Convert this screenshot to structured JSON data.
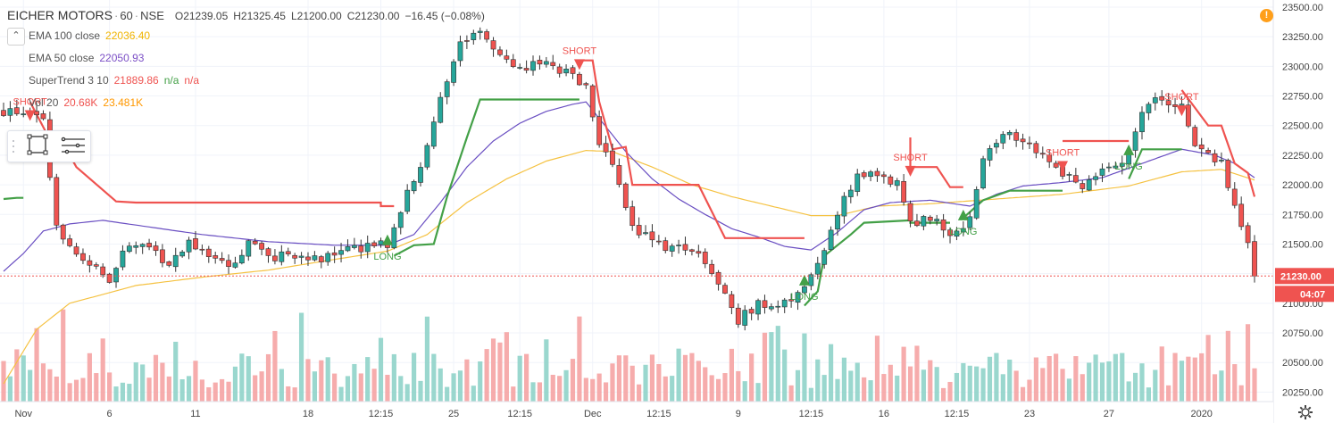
{
  "header": {
    "symbol": "EICHER MOTORS",
    "interval": "60",
    "exchange": "NSE",
    "open": "O21239.05",
    "high": "H21325.45",
    "low": "L21200.00",
    "close": "C21230.00",
    "change": "−16.45 (−0.08%)"
  },
  "indicators": [
    {
      "name": "EMA 100 close",
      "values": [
        "22036.40"
      ],
      "colors": [
        "#f0b400"
      ]
    },
    {
      "name": "EMA 50 close",
      "values": [
        "22050.93"
      ],
      "colors": [
        "#7b4fc6"
      ]
    },
    {
      "name": "SuperTrend 3 10",
      "values": [
        "21889.86",
        "n/a",
        "n/a"
      ],
      "colors": [
        "#ef5350",
        "#43a047",
        "#ef5350"
      ]
    },
    {
      "name": "Vol 20",
      "values": [
        "20.68K",
        "23.481K"
      ],
      "colors": [
        "#ef5350",
        "#ff9800"
      ]
    }
  ],
  "colors": {
    "up": "#26a69a",
    "down": "#ef5350",
    "vol_up": "#8fd3c9",
    "vol_down": "#f5a3a3",
    "ema100": "#f5c242",
    "ema50": "#6a4fc2",
    "st_up": "#43a047",
    "st_down": "#ef5350",
    "price_line": "#ef5350"
  },
  "icons": {
    "alert": "alert-icon",
    "settings": "gear-icon",
    "rectangle": "rectangle-tool-icon",
    "lines": "lines-tool-icon",
    "collapse": "chevron-up-icon"
  },
  "alert_glyph": "!",
  "collapse_glyph": "⌃",
  "chart_data": {
    "type": "candlestick",
    "y_range": [
      20170,
      23560
    ],
    "y_ticks": [
      20250,
      20500,
      20750,
      21000,
      21250,
      21500,
      21750,
      22000,
      22250,
      22500,
      22750,
      23000,
      23250,
      23500
    ],
    "y_tick_labels": [
      "20250.00",
      "20500.00",
      "20750.00",
      "21000.00",
      "21250.00",
      "21500.00",
      "21750.00",
      "22000.00",
      "22250.00",
      "22500.00",
      "22750.00",
      "23000.00",
      "23250.00",
      "23500.00"
    ],
    "last_price": 21230,
    "last_price_label": "21230.00",
    "countdown": "04:07",
    "x_labels": [
      {
        "i": 3,
        "label": "Nov"
      },
      {
        "i": 16,
        "label": "6"
      },
      {
        "i": 29,
        "label": "11"
      },
      {
        "i": 46,
        "label": "18"
      },
      {
        "i": 57,
        "label": "12:15"
      },
      {
        "i": 68,
        "label": "25"
      },
      {
        "i": 78,
        "label": "12:15"
      },
      {
        "i": 89,
        "label": "Dec"
      },
      {
        "i": 99,
        "label": "12:15"
      },
      {
        "i": 111,
        "label": "9"
      },
      {
        "i": 122,
        "label": "12:15"
      },
      {
        "i": 133,
        "label": "16"
      },
      {
        "i": 144,
        "label": "12:15"
      },
      {
        "i": 155,
        "label": "23"
      },
      {
        "i": 167,
        "label": "27"
      },
      {
        "i": 181,
        "label": "2020"
      }
    ],
    "price_path": [
      [
        0,
        22620
      ],
      [
        3,
        22620
      ],
      [
        6,
        22520
      ],
      [
        8,
        21650
      ],
      [
        10,
        21500
      ],
      [
        13,
        21350
      ],
      [
        16,
        21180
      ],
      [
        18,
        21420
      ],
      [
        22,
        21500
      ],
      [
        25,
        21300
      ],
      [
        28,
        21550
      ],
      [
        31,
        21380
      ],
      [
        34,
        21300
      ],
      [
        37,
        21500
      ],
      [
        41,
        21380
      ],
      [
        44,
        21420
      ],
      [
        47,
        21370
      ],
      [
        51,
        21450
      ],
      [
        55,
        21480
      ],
      [
        58,
        21500
      ],
      [
        60,
        21800
      ],
      [
        63,
        22150
      ],
      [
        66,
        22750
      ],
      [
        69,
        23200
      ],
      [
        72,
        23300
      ],
      [
        75,
        23100
      ],
      [
        78,
        23000
      ],
      [
        82,
        23000
      ],
      [
        85,
        22950
      ],
      [
        88,
        22820
      ],
      [
        90,
        22300
      ],
      [
        92,
        22200
      ],
      [
        94,
        21800
      ],
      [
        96,
        21600
      ],
      [
        99,
        21500
      ],
      [
        102,
        21450
      ],
      [
        105,
        21420
      ],
      [
        108,
        21200
      ],
      [
        111,
        20850
      ],
      [
        114,
        21000
      ],
      [
        117,
        20950
      ],
      [
        120,
        21100
      ],
      [
        123,
        21300
      ],
      [
        126,
        21750
      ],
      [
        129,
        22100
      ],
      [
        132,
        22050
      ],
      [
        135,
        22000
      ],
      [
        137,
        21700
      ],
      [
        140,
        21700
      ],
      [
        143,
        21600
      ],
      [
        146,
        21700
      ],
      [
        148,
        22250
      ],
      [
        151,
        22450
      ],
      [
        154,
        22400
      ],
      [
        157,
        22250
      ],
      [
        160,
        22100
      ],
      [
        163,
        22000
      ],
      [
        166,
        22100
      ],
      [
        169,
        22200
      ],
      [
        172,
        22600
      ],
      [
        175,
        22750
      ],
      [
        178,
        22650
      ],
      [
        180,
        22350
      ],
      [
        182,
        22250
      ],
      [
        184,
        22180
      ],
      [
        186,
        21800
      ],
      [
        188,
        21500
      ],
      [
        189,
        21230
      ]
    ],
    "candle_count": 190,
    "ema50_path": [
      [
        0,
        21270
      ],
      [
        3,
        21420
      ],
      [
        6,
        21610
      ],
      [
        10,
        21670
      ],
      [
        15,
        21700
      ],
      [
        20,
        21660
      ],
      [
        30,
        21580
      ],
      [
        40,
        21520
      ],
      [
        50,
        21490
      ],
      [
        58,
        21490
      ],
      [
        62,
        21580
      ],
      [
        66,
        21850
      ],
      [
        70,
        22150
      ],
      [
        74,
        22370
      ],
      [
        78,
        22520
      ],
      [
        82,
        22620
      ],
      [
        86,
        22680
      ],
      [
        88,
        22700
      ],
      [
        90,
        22560
      ],
      [
        94,
        22280
      ],
      [
        98,
        22050
      ],
      [
        102,
        21880
      ],
      [
        106,
        21750
      ],
      [
        110,
        21630
      ],
      [
        114,
        21560
      ],
      [
        118,
        21480
      ],
      [
        122,
        21450
      ],
      [
        126,
        21600
      ],
      [
        130,
        21790
      ],
      [
        134,
        21850
      ],
      [
        140,
        21870
      ],
      [
        146,
        21820
      ],
      [
        150,
        21920
      ],
      [
        154,
        21990
      ],
      [
        160,
        22020
      ],
      [
        166,
        22060
      ],
      [
        172,
        22180
      ],
      [
        178,
        22300
      ],
      [
        183,
        22250
      ],
      [
        186,
        22180
      ],
      [
        189,
        22060
      ]
    ],
    "ema100_path": [
      [
        0,
        20320
      ],
      [
        5,
        20780
      ],
      [
        10,
        21000
      ],
      [
        20,
        21150
      ],
      [
        30,
        21220
      ],
      [
        40,
        21280
      ],
      [
        50,
        21370
      ],
      [
        58,
        21440
      ],
      [
        64,
        21580
      ],
      [
        70,
        21850
      ],
      [
        76,
        22050
      ],
      [
        82,
        22200
      ],
      [
        88,
        22290
      ],
      [
        92,
        22280
      ],
      [
        98,
        22150
      ],
      [
        104,
        22000
      ],
      [
        110,
        21900
      ],
      [
        116,
        21820
      ],
      [
        122,
        21740
      ],
      [
        126,
        21740
      ],
      [
        132,
        21820
      ],
      [
        140,
        21840
      ],
      [
        150,
        21880
      ],
      [
        160,
        21920
      ],
      [
        170,
        21990
      ],
      [
        178,
        22110
      ],
      [
        184,
        22130
      ],
      [
        189,
        22040
      ]
    ],
    "supertrend_segments": [
      {
        "trend": "up",
        "points": [
          [
            0,
            21880
          ],
          [
            2,
            21890
          ],
          [
            3,
            21890
          ]
        ]
      },
      {
        "trend": "down",
        "points": [
          [
            4,
            22700
          ],
          [
            7,
            22380
          ],
          [
            9,
            22350
          ],
          [
            11,
            22150
          ],
          [
            17,
            21860
          ],
          [
            20,
            21850
          ],
          [
            57,
            21850
          ],
          [
            57,
            21820
          ],
          [
            59,
            21820
          ]
        ]
      },
      {
        "trend": "up",
        "points": [
          [
            59,
            21400
          ],
          [
            62,
            21490
          ],
          [
            65,
            21500
          ],
          [
            67,
            21900
          ],
          [
            70,
            22400
          ],
          [
            72,
            22720
          ],
          [
            75,
            22720
          ],
          [
            87,
            22720
          ]
        ]
      },
      {
        "trend": "down",
        "points": [
          [
            87,
            23050
          ],
          [
            89,
            23050
          ],
          [
            90,
            22700
          ],
          [
            92,
            22300
          ],
          [
            94,
            22320
          ],
          [
            95,
            22000
          ],
          [
            105,
            22000
          ],
          [
            109,
            21550
          ],
          [
            121,
            21550
          ]
        ]
      },
      {
        "trend": "up",
        "points": [
          [
            121,
            20980
          ],
          [
            123,
            21100
          ],
          [
            124,
            21400
          ],
          [
            128,
            21580
          ],
          [
            130,
            21680
          ],
          [
            137,
            21700
          ],
          [
            137,
            21680
          ],
          [
            143,
            21680
          ]
        ]
      },
      {
        "trend": "down",
        "points": [
          [
            137,
            22400
          ],
          [
            137,
            22150
          ],
          [
            141,
            22150
          ],
          [
            143,
            21980
          ],
          [
            145,
            21980
          ]
        ]
      },
      {
        "trend": "up",
        "points": [
          [
            145,
            21720
          ],
          [
            148,
            21870
          ],
          [
            152,
            21950
          ],
          [
            160,
            21950
          ]
        ]
      },
      {
        "trend": "down",
        "points": [
          [
            160,
            22370
          ],
          [
            170,
            22370
          ]
        ]
      },
      {
        "trend": "up",
        "points": [
          [
            170,
            22050
          ],
          [
            172,
            22300
          ],
          [
            178,
            22300
          ]
        ]
      },
      {
        "trend": "down",
        "points": [
          [
            178,
            22800
          ],
          [
            182,
            22500
          ],
          [
            184,
            22500
          ],
          [
            186,
            22180
          ],
          [
            188,
            22100
          ],
          [
            189,
            21900
          ]
        ]
      }
    ],
    "signals": [
      {
        "i": 4,
        "type": "short",
        "price": 22630,
        "label": "SHORT"
      },
      {
        "i": 58,
        "type": "long",
        "price": 21490,
        "label": "LONG"
      },
      {
        "i": 87,
        "type": "short",
        "price": 23060,
        "label": "SHORT"
      },
      {
        "i": 121,
        "type": "long",
        "price": 21150,
        "label": "LONG"
      },
      {
        "i": 137,
        "type": "short",
        "price": 22160,
        "label": "SHORT"
      },
      {
        "i": 145,
        "type": "long",
        "price": 21700,
        "label": "LONG"
      },
      {
        "i": 160,
        "type": "short",
        "price": 22200,
        "label": "SHORT"
      },
      {
        "i": 170,
        "type": "long",
        "price": 22250,
        "label": "LONG"
      },
      {
        "i": 178,
        "type": "short",
        "price": 22670,
        "label": "SHORT"
      }
    ],
    "volume_range": [
      0,
      1
    ]
  }
}
